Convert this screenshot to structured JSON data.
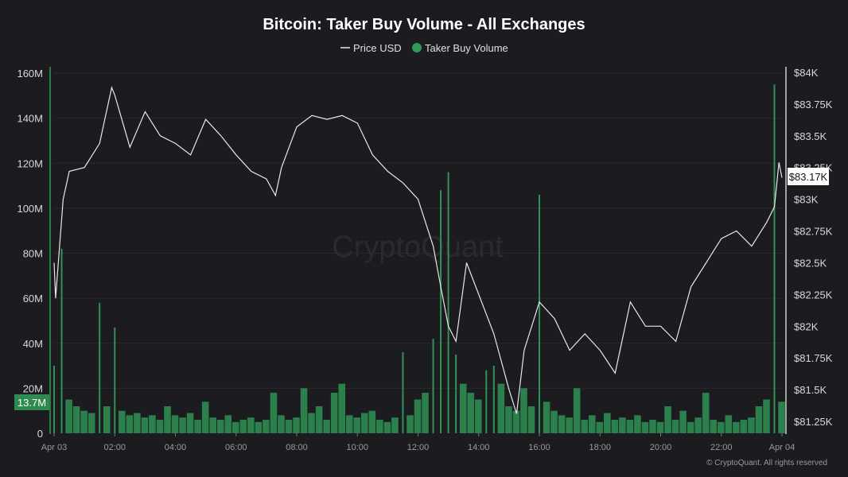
{
  "chart_data": {
    "type": "bar+line",
    "title": "Bitcoin: Taker Buy Volume - All Exchanges",
    "legend": {
      "placement": "top-center",
      "items": [
        "Price USD",
        "Taker Buy Volume"
      ]
    },
    "x_axis": {
      "ticks": [
        "Apr 03",
        "02:00",
        "04:00",
        "06:00",
        "08:00",
        "10:00",
        "12:00",
        "14:00",
        "16:00",
        "18:00",
        "20:00",
        "22:00",
        "Apr 04"
      ],
      "range_hours": [
        0,
        24
      ]
    },
    "y_left": {
      "ticks": [
        "0",
        "20M",
        "40M",
        "60M",
        "80M",
        "100M",
        "120M",
        "140M",
        "160M"
      ],
      "range": [
        0,
        160
      ],
      "unit": "M"
    },
    "y_right": {
      "ticks": [
        "$81.25K",
        "$81.5K",
        "$81.75K",
        "$82K",
        "$82.25K",
        "$82.5K",
        "$82.75K",
        "$83K",
        "$83.25K",
        "$83.5K",
        "$83.75K",
        "$84K"
      ],
      "range": [
        81.25,
        84
      ],
      "unit": "K USD"
    },
    "grid": true,
    "colors": {
      "price": "#e8e8e8",
      "volume": "#2f9a57",
      "background": "#1c1b20",
      "badge": "#2f8a52"
    },
    "current_volume_label": "13.7M",
    "current_volume": 13.7,
    "current_price_label": "$83.17K",
    "current_price": 83.17,
    "series": [
      {
        "name": "Price USD",
        "x_hours": [
          0,
          0.05,
          0.3,
          0.5,
          1,
          1.5,
          1.9,
          2,
          2.5,
          3,
          3.5,
          4,
          4.5,
          5,
          5.5,
          6,
          6.5,
          7,
          7.3,
          7.5,
          8,
          8.5,
          9,
          9.5,
          10,
          10.5,
          11,
          11.5,
          12,
          12.5,
          12.75,
          13,
          13.25,
          13.6,
          14,
          14.5,
          15,
          15.25,
          15.5,
          16,
          16.5,
          17,
          17.5,
          18,
          18.5,
          19,
          19.5,
          20,
          20.5,
          21,
          21.5,
          22,
          22.5,
          23,
          23.5,
          23.75,
          23.9,
          24
        ],
        "values": [
          82.5,
          82.22,
          83.0,
          83.22,
          83.25,
          83.44,
          83.88,
          83.82,
          83.41,
          83.69,
          83.5,
          83.44,
          83.35,
          83.63,
          83.5,
          83.35,
          83.22,
          83.16,
          83.03,
          83.25,
          83.57,
          83.66,
          83.63,
          83.66,
          83.6,
          83.35,
          83.22,
          83.13,
          83.0,
          82.63,
          82.31,
          82.0,
          81.88,
          82.5,
          82.25,
          81.94,
          81.5,
          81.31,
          81.81,
          82.19,
          82.06,
          81.81,
          81.94,
          81.81,
          81.63,
          82.19,
          82.0,
          82.0,
          81.88,
          82.31,
          82.5,
          82.69,
          82.75,
          82.63,
          82.82,
          82.94,
          83.29,
          83.17
        ]
      },
      {
        "name": "Taker Buy Volume",
        "x_step_hours": 0.25,
        "values": [
          30,
          82,
          15,
          12,
          10,
          9,
          58,
          12,
          47,
          10,
          8,
          9,
          7,
          8,
          6,
          12,
          8,
          7,
          9,
          6,
          14,
          7,
          6,
          8,
          5,
          6,
          7,
          5,
          6,
          18,
          8,
          6,
          7,
          20,
          9,
          12,
          6,
          18,
          22,
          8,
          7,
          9,
          10,
          6,
          5,
          7,
          36,
          8,
          15,
          18,
          42,
          108,
          116,
          35,
          22,
          18,
          15,
          28,
          30,
          22,
          12,
          10,
          20,
          12,
          106,
          14,
          10,
          8,
          7,
          20,
          6,
          8,
          5,
          9,
          6,
          7,
          6,
          8,
          5,
          6,
          5,
          12,
          6,
          10,
          5,
          7,
          18,
          6,
          5,
          8,
          5,
          6,
          7,
          12,
          15,
          155,
          14
        ]
      }
    ]
  },
  "watermark": "CryptoQuant",
  "footer": "© CryptoQuant. All rights reserved"
}
